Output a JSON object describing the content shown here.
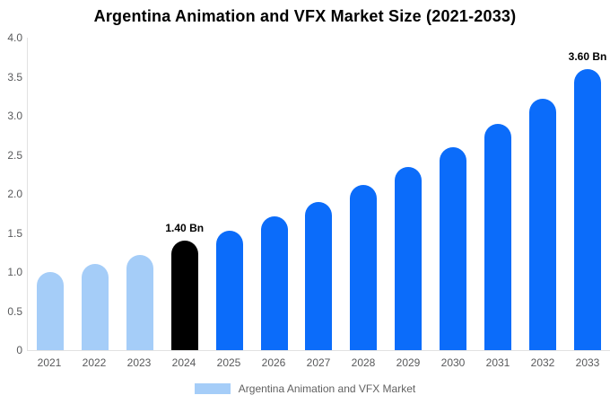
{
  "chart_data": {
    "type": "bar",
    "title": "Argentina Animation and VFX Market Size (2021-2033)",
    "categories": [
      "2021",
      "2022",
      "2023",
      "2024",
      "2025",
      "2026",
      "2027",
      "2028",
      "2029",
      "2030",
      "2031",
      "2032",
      "2033"
    ],
    "values": [
      1.0,
      1.1,
      1.22,
      1.4,
      1.53,
      1.71,
      1.9,
      2.11,
      2.34,
      2.6,
      2.9,
      3.22,
      3.6
    ],
    "unit": "Bn",
    "xlabel": "",
    "ylabel": "",
    "ylim": [
      0,
      4
    ],
    "yticks": [
      "4.0",
      "3.5",
      "3.0",
      "2.5",
      "2.0",
      "1.5",
      "1.0",
      "0.5",
      "0"
    ],
    "grid": "off",
    "legend_position": "bottom",
    "annotations": [
      {
        "category": "2024",
        "text": "1.40 Bn"
      },
      {
        "category": "2033",
        "text": "3.60 Bn"
      }
    ],
    "bar_colors": [
      "#a5cdf8",
      "#a5cdf8",
      "#a5cdf8",
      "#000000",
      "#0b6cfa",
      "#0b6cfa",
      "#0b6cfa",
      "#0b6cfa",
      "#0b6cfa",
      "#0b6cfa",
      "#0b6cfa",
      "#0b6cfa",
      "#0b6cfa"
    ]
  },
  "colors": {
    "historical_bar": "#a5cdf8",
    "base_year_bar": "#000000",
    "forecast_bar": "#0b6cfa",
    "axis_line": "#e2e2e2",
    "tick_text": "#58595b",
    "title_text": "#000000"
  },
  "legend": {
    "label": "Argentina Animation and VFX Market",
    "swatch_color": "#a5cdf8"
  }
}
